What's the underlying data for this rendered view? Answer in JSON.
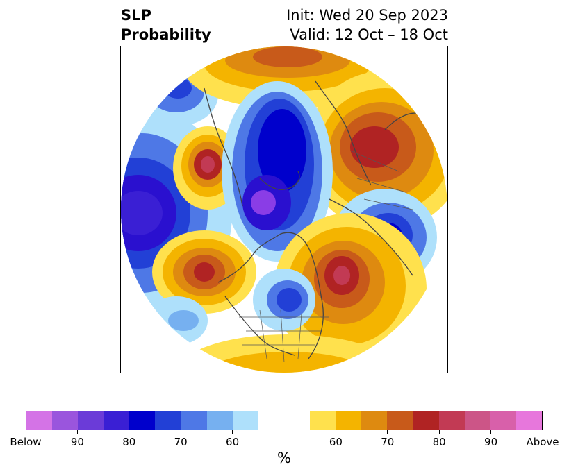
{
  "header": {
    "title_line1": "SLP",
    "title_line2": "Probability",
    "init_text": "Init: Wed 20 Sep 2023",
    "valid_text": "Valid: 12 Oct – 18 Oct"
  },
  "colorbar": {
    "label": "%",
    "colors": [
      "#d473e6",
      "#9a55dd",
      "#6b3bd8",
      "#3a1fd4",
      "#0000cc",
      "#2240d6",
      "#4e78e6",
      "#76b0f0",
      "#aee0fb",
      "#ffffff",
      "#ffffff",
      "#ffe14d",
      "#f4b400",
      "#de8a10",
      "#c85a1a",
      "#b02323",
      "#c23a54",
      "#cc5587",
      "#d860aa",
      "#e777dc"
    ],
    "tick_labels": [
      "Below",
      "90",
      "80",
      "70",
      "60",
      "60",
      "70",
      "80",
      "90",
      "Above"
    ]
  },
  "map": {
    "projection": "north-polar-stereographic",
    "palette": {
      "below_100": "#8a3de6",
      "below_90": "#5a2fd9",
      "below_80": "#2a10cf",
      "below_70": "#0000cc",
      "below_60": "#4e78e6",
      "below_weak": "#aee0fb",
      "above_weak": "#ffe14d",
      "above_60": "#f4b400",
      "above_70": "#de8a10",
      "above_80": "#c85a1a",
      "above_90": "#b02323",
      "above_100": "#c23a54"
    }
  }
}
